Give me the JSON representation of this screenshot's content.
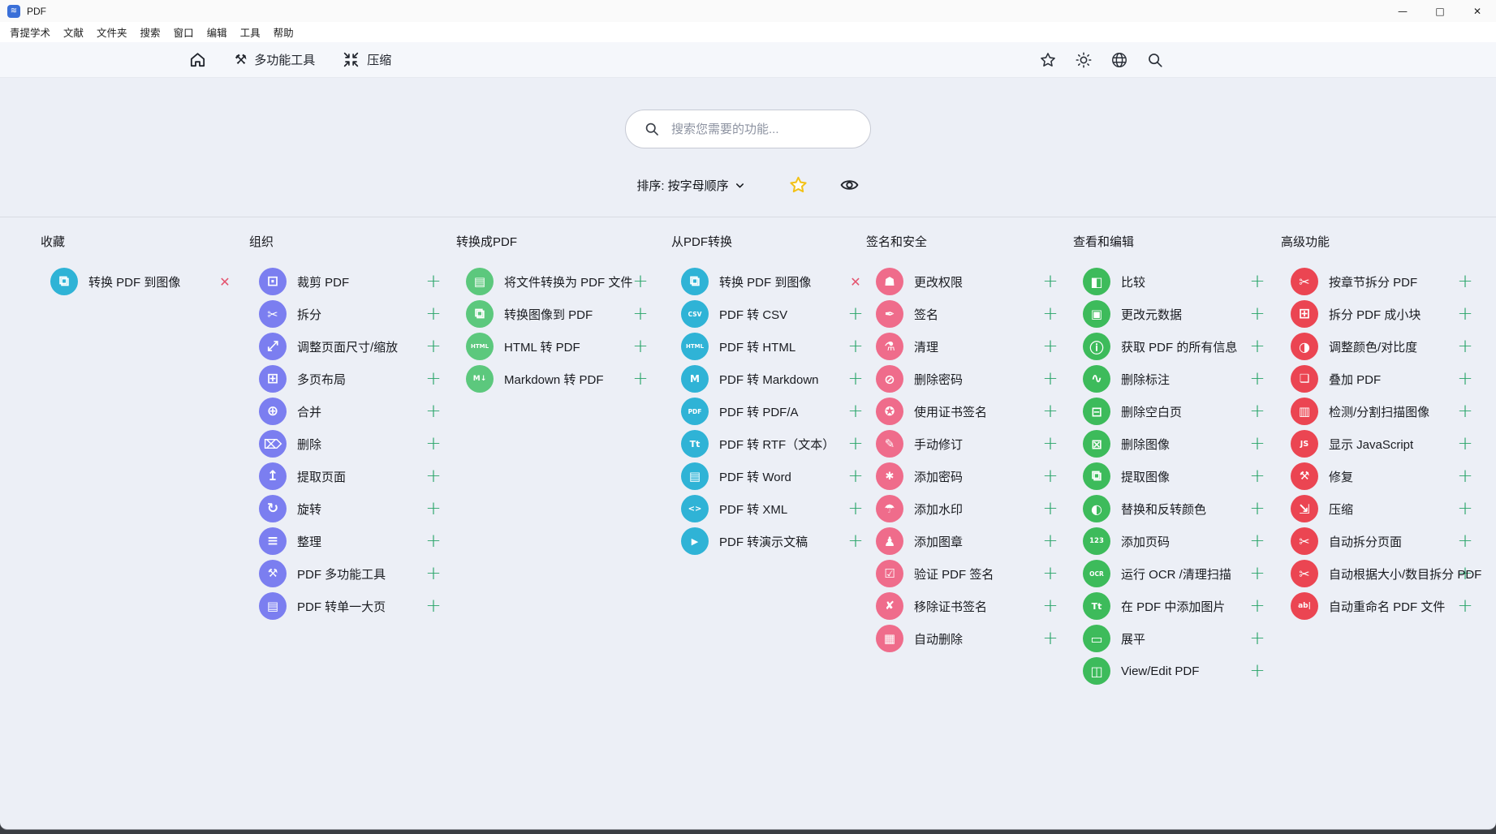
{
  "window": {
    "title": "PDF",
    "controls": {
      "minimize": "—",
      "maximize": "□",
      "close": "✕"
    }
  },
  "menu_bar": {
    "items": [
      "青提学术",
      "文献",
      "文件夹",
      "搜索",
      "窗口",
      "编辑",
      "工具",
      "帮助"
    ]
  },
  "nav": {
    "multitool_label": "多功能工具",
    "compress_label": "压缩",
    "right_icons": [
      "star-icon",
      "theme-brightness-icon",
      "language-globe-icon",
      "search-icon"
    ]
  },
  "search": {
    "placeholder": "搜索您需要的功能...",
    "value": ""
  },
  "sort": {
    "label": "排序: 按字母顺序"
  },
  "actions": {
    "add_glyph": "+",
    "remove_glyph": "✕"
  },
  "colors": {
    "favorites_accent": "#2fb3d6",
    "organize_accent": "#7b7ef0",
    "convert_to_pdf_accent": "#5cc87d",
    "convert_from_pdf_accent": "#2fb3d6",
    "sign_security_accent": "#ef6c8b",
    "view_edit_accent": "#3dbb5b",
    "advanced_accent": "#eb4552",
    "add_button": "#27a468",
    "remove_button": "#e4536e",
    "sort_star": "#f2c117"
  },
  "columns": [
    {
      "title": "收藏",
      "accent": "#2fb3d6",
      "items": [
        {
          "label": "转换 PDF 到图像",
          "icon": "pdf-to-image-icon",
          "action": "remove"
        }
      ]
    },
    {
      "title": "组织",
      "accent": "#7b7ef0",
      "items": [
        {
          "label": "裁剪 PDF",
          "icon": "crop-icon",
          "action": "add"
        },
        {
          "label": "拆分",
          "icon": "split-icon",
          "action": "add"
        },
        {
          "label": "调整页面尺寸/缩放",
          "icon": "scale-pages-icon",
          "action": "add"
        },
        {
          "label": "多页布局",
          "icon": "multi-page-layout-icon",
          "action": "add"
        },
        {
          "label": "合并",
          "icon": "merge-icon",
          "action": "add"
        },
        {
          "label": "删除",
          "icon": "delete-icon",
          "action": "add"
        },
        {
          "label": "提取页面",
          "icon": "extract-pages-icon",
          "action": "add"
        },
        {
          "label": "旋转",
          "icon": "rotate-icon",
          "action": "add"
        },
        {
          "label": "整理",
          "icon": "organize-icon",
          "action": "add"
        },
        {
          "label": "PDF 多功能工具",
          "icon": "pdf-multitool-icon",
          "action": "add"
        },
        {
          "label": "PDF 转单一大页",
          "icon": "pdf-to-single-page-icon",
          "action": "add"
        }
      ]
    },
    {
      "title": "转换成PDF",
      "accent": "#5cc87d",
      "items": [
        {
          "label": "将文件转换为 PDF 文件",
          "icon": "file-to-pdf-icon",
          "action": "add"
        },
        {
          "label": "转换图像到 PDF",
          "icon": "image-to-pdf-icon",
          "action": "add"
        },
        {
          "label": "HTML 转 PDF",
          "icon": "html-to-pdf-icon",
          "action": "add"
        },
        {
          "label": "Markdown 转 PDF",
          "icon": "markdown-to-pdf-icon",
          "action": "add"
        }
      ]
    },
    {
      "title": "从PDF转换",
      "accent": "#2fb3d6",
      "items": [
        {
          "label": "转换 PDF 到图像",
          "icon": "pdf-to-image-icon",
          "action": "remove"
        },
        {
          "label": "PDF 转 CSV",
          "icon": "pdf-to-csv-icon",
          "action": "add"
        },
        {
          "label": "PDF 转 HTML",
          "icon": "pdf-to-html-icon",
          "action": "add"
        },
        {
          "label": "PDF 转 Markdown",
          "icon": "pdf-to-markdown-icon",
          "action": "add"
        },
        {
          "label": "PDF 转 PDF/A",
          "icon": "pdf-to-pdfa-icon",
          "action": "add"
        },
        {
          "label": "PDF 转 RTF（文本）",
          "icon": "pdf-to-rtf-icon",
          "action": "add"
        },
        {
          "label": "PDF 转 Word",
          "icon": "pdf-to-word-icon",
          "action": "add"
        },
        {
          "label": "PDF 转 XML",
          "icon": "pdf-to-xml-icon",
          "action": "add"
        },
        {
          "label": "PDF 转演示文稿",
          "icon": "pdf-to-presentation-icon",
          "action": "add"
        }
      ]
    },
    {
      "title": "签名和安全",
      "accent": "#ef6c8b",
      "items": [
        {
          "label": "更改权限",
          "icon": "permissions-icon",
          "action": "add"
        },
        {
          "label": "签名",
          "icon": "sign-icon",
          "action": "add"
        },
        {
          "label": "清理",
          "icon": "sanitize-icon",
          "action": "add"
        },
        {
          "label": "删除密码",
          "icon": "remove-password-icon",
          "action": "add"
        },
        {
          "label": "使用证书签名",
          "icon": "cert-sign-icon",
          "action": "add"
        },
        {
          "label": "手动修订",
          "icon": "manual-redact-icon",
          "action": "add"
        },
        {
          "label": "添加密码",
          "icon": "add-password-icon",
          "action": "add"
        },
        {
          "label": "添加水印",
          "icon": "add-watermark-icon",
          "action": "add"
        },
        {
          "label": "添加图章",
          "icon": "add-stamp-icon",
          "action": "add"
        },
        {
          "label": "验证 PDF 签名",
          "icon": "validate-signature-icon",
          "action": "add"
        },
        {
          "label": "移除证书签名",
          "icon": "remove-cert-sign-icon",
          "action": "add"
        },
        {
          "label": "自动删除",
          "icon": "auto-redact-icon",
          "action": "add"
        }
      ]
    },
    {
      "title": "查看和编辑",
      "accent": "#3dbb5b",
      "items": [
        {
          "label": "比较",
          "icon": "compare-icon",
          "action": "add"
        },
        {
          "label": "更改元数据",
          "icon": "edit-metadata-icon",
          "action": "add"
        },
        {
          "label": "获取 PDF 的所有信息",
          "icon": "info-icon",
          "action": "add"
        },
        {
          "label": "删除标注",
          "icon": "remove-annotations-icon",
          "action": "add"
        },
        {
          "label": "删除空白页",
          "icon": "remove-blank-pages-icon",
          "action": "add"
        },
        {
          "label": "删除图像",
          "icon": "remove-images-icon",
          "action": "add"
        },
        {
          "label": "提取图像",
          "icon": "extract-images-icon",
          "action": "add"
        },
        {
          "label": "替换和反转颜色",
          "icon": "replace-invert-colors-icon",
          "action": "add"
        },
        {
          "label": "添加页码",
          "icon": "page-numbers-icon",
          "action": "add"
        },
        {
          "label": "运行 OCR /清理扫描",
          "icon": "ocr-icon",
          "action": "add"
        },
        {
          "label": "在 PDF 中添加图片",
          "icon": "add-image-icon",
          "action": "add"
        },
        {
          "label": "展平",
          "icon": "flatten-icon",
          "action": "add"
        },
        {
          "label": "View/Edit PDF",
          "icon": "view-edit-pdf-icon",
          "action": "add"
        }
      ]
    },
    {
      "title": "高级功能",
      "accent": "#eb4552",
      "items": [
        {
          "label": "按章节拆分 PDF",
          "icon": "split-chapters-icon",
          "action": "add"
        },
        {
          "label": "拆分 PDF 成小块",
          "icon": "split-chunks-icon",
          "action": "add"
        },
        {
          "label": "调整颜色/对比度",
          "icon": "adjust-colors-icon",
          "action": "add"
        },
        {
          "label": "叠加 PDF",
          "icon": "overlay-icon",
          "action": "add"
        },
        {
          "label": "检测/分割扫描图像",
          "icon": "detect-split-scans-icon",
          "action": "add"
        },
        {
          "label": "显示 JavaScript",
          "icon": "show-javascript-icon",
          "action": "add"
        },
        {
          "label": "修复",
          "icon": "repair-icon",
          "action": "add"
        },
        {
          "label": "压缩",
          "icon": "compress-icon",
          "action": "add"
        },
        {
          "label": "自动拆分页面",
          "icon": "auto-split-pages-icon",
          "action": "add"
        },
        {
          "label": "自动根据大小/数目拆分 PDF",
          "icon": "auto-split-size-icon",
          "action": "add"
        },
        {
          "label": "自动重命名 PDF 文件",
          "icon": "auto-rename-icon",
          "action": "add"
        }
      ]
    }
  ]
}
